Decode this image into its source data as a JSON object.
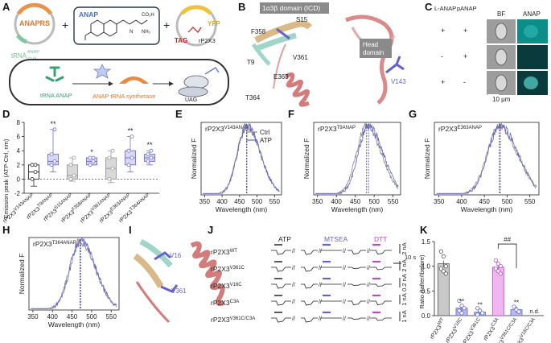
{
  "panel_labels": [
    "A",
    "B",
    "C",
    "D",
    "E",
    "F",
    "G",
    "H",
    "I",
    "J",
    "K"
  ],
  "panelA": {
    "plasmid1_label": "ANAPRS",
    "anap_label": "ANAP",
    "plasmid2_label": "YFP",
    "tag_label": "TAG",
    "construct_label": "rP2X3",
    "trna_label": "tRNA",
    "trna_sup": "ANAP",
    "trna_sub": "CUA",
    "trna_anap_label": "tRNA ANAP",
    "synthetase_label": "ANAP tRNA synthetase",
    "uag_label": "UAG",
    "plus": "+"
  },
  "panelB": {
    "icd_label": "1α3β domain (ICD)",
    "head_label": "Head domain",
    "residues": [
      "S15",
      "F358",
      "V361",
      "T9",
      "E363",
      "T364"
    ],
    "v143": "V143"
  },
  "panelC": {
    "col_header1": "L-ANAP",
    "col_header2": "pANAP",
    "img_headers": [
      "BF",
      "ANAP"
    ],
    "rows": [
      [
        "+",
        "+"
      ],
      [
        "-",
        "+"
      ],
      [
        "+",
        "-"
      ]
    ],
    "scale": "10 μm"
  },
  "panelD": {
    "ylabel": "Emission peak (ATP-Ctrl, nm)",
    "yticks": [
      "8",
      "6",
      "4",
      "2",
      "0",
      "-2"
    ],
    "categories": [
      "rP2X3V143ANAP",
      "rP2X3T9ANAP",
      "rP2X3S15ANAP",
      "rP2X3F358ANAP",
      "rP2X3V361ANAP",
      "rP2X3E363ANAP",
      "rP2X3T364ANAP"
    ],
    "sig": [
      "",
      "**",
      "",
      "*",
      "",
      "**",
      "**"
    ]
  },
  "spectra_common": {
    "ylabel": "Normalized F",
    "xlabel": "Wavelength (nm)",
    "xticks": [
      "350",
      "400",
      "450",
      "500",
      "550"
    ],
    "legend": [
      "Ctrl",
      "ATP"
    ]
  },
  "spectra_titles": {
    "E": "rP2X3V143ANAP",
    "F": "rP2X3T9ANAP",
    "G": "rP2X3E363ANAP",
    "H": "rP2X3T364ANAP"
  },
  "panelI": {
    "residues": [
      "V16",
      "V361"
    ]
  },
  "panelJ": {
    "headers": [
      "ATP",
      "MTSEA",
      "DTT"
    ],
    "rows": [
      "rP2X3WT",
      "rP2X3V361C",
      "rP2X3V16C",
      "rP2X3C3A",
      "rP2X3V361C/C3A"
    ],
    "scales": [
      "2 nA",
      "2 nA",
      "0.2 nA",
      "1 nA",
      "1 nA"
    ],
    "time_scale": "10 s"
  },
  "panelK": {
    "ylabel": "Ratio (Iafter/Ibefore)",
    "yticks": [
      "0.0",
      "0.5",
      "1.0",
      "1.5"
    ],
    "categories": [
      "rP2X3WT",
      "rP2X3V16C",
      "rP2X3V361C",
      "rP2X3C3A",
      "rP2X3V361C/C3A",
      "rP2X3V16C/C3A"
    ],
    "sig": [
      "",
      "**",
      "**",
      "",
      "**",
      ""
    ],
    "bracket": "##",
    "nd": "n.d."
  },
  "chart_data": [
    {
      "type": "box",
      "ylabel": "Emission peak (ATP-Ctrl, nm)",
      "ylim": [
        -2,
        8
      ],
      "categories": [
        "rP2X3V143ANAP",
        "rP2X3T9ANAP",
        "rP2X3S15ANAP",
        "rP2X3F358ANAP",
        "rP2X3V361ANAP",
        "rP2X3E363ANAP",
        "rP2X3T364ANAP"
      ],
      "boxes": [
        {
          "min": -1.0,
          "q1": 0.0,
          "median": 1.0,
          "q3": 2.0,
          "max": 2.0
        },
        {
          "min": 1.0,
          "q1": 2.0,
          "median": 2.5,
          "q3": 3.5,
          "max": 7.0
        },
        {
          "min": -0.3,
          "q1": 0.0,
          "median": 0.5,
          "q3": 2.0,
          "max": 3.0
        },
        {
          "min": 2.0,
          "q1": 2.0,
          "median": 2.5,
          "q3": 3.0,
          "max": 3.0
        },
        {
          "min": -0.5,
          "q1": 0.0,
          "median": 1.5,
          "q3": 3.0,
          "max": 4.0
        },
        {
          "min": 1.0,
          "q1": 2.0,
          "median": 3.0,
          "q3": 4.0,
          "max": 6.0
        },
        {
          "min": 2.0,
          "q1": 2.5,
          "median": 3.0,
          "q3": 3.5,
          "max": 4.0
        }
      ],
      "colors": [
        "#2b2b2b",
        "#7070d8",
        "#9a9a9a",
        "#7070d8",
        "#9a9a9a",
        "#7070d8",
        "#7070d8"
      ]
    },
    {
      "type": "line",
      "xlabel": "Wavelength (nm)",
      "ylabel": "Normalized F",
      "xlim": [
        340,
        570
      ],
      "panels": [
        {
          "id": "E",
          "peak_ctrl": 470,
          "peak_atp": 471
        },
        {
          "id": "F",
          "peak_ctrl": 480,
          "peak_atp": 485
        },
        {
          "id": "G",
          "peak_ctrl": 483,
          "peak_atp": 485
        },
        {
          "id": "H",
          "peak_ctrl": 470,
          "peak_atp": 472
        }
      ],
      "series": [
        {
          "name": "Ctrl",
          "color": "#909090"
        },
        {
          "name": "ATP",
          "color": "#6464cc"
        }
      ]
    },
    {
      "type": "bar",
      "ylabel": "Ratio (Iafter/Ibefore)",
      "ylim": [
        0,
        1.5
      ],
      "categories": [
        "rP2X3WT",
        "rP2X3V16C",
        "rP2X3V361C",
        "rP2X3C3A",
        "rP2X3V361C/C3A",
        "rP2X3V16C/C3A"
      ],
      "values": [
        1.05,
        0.15,
        0.07,
        0.98,
        0.12,
        null
      ],
      "points": [
        [
          1.3,
          1.2,
          1.0,
          0.95,
          0.9,
          0.85
        ],
        [
          0.3,
          0.2,
          0.15,
          0.1,
          0.05
        ],
        [
          0.15,
          0.1,
          0.05,
          0.02
        ],
        [
          1.12,
          1.05,
          1.0,
          0.95,
          0.9,
          0.85
        ],
        [
          0.18,
          0.12,
          0.08
        ]
      ],
      "colors": [
        "#c8c8c8",
        "#b8b8ec",
        "#b8b8ec",
        "#f0b6f0",
        "#b8b8ec",
        ""
      ]
    }
  ]
}
